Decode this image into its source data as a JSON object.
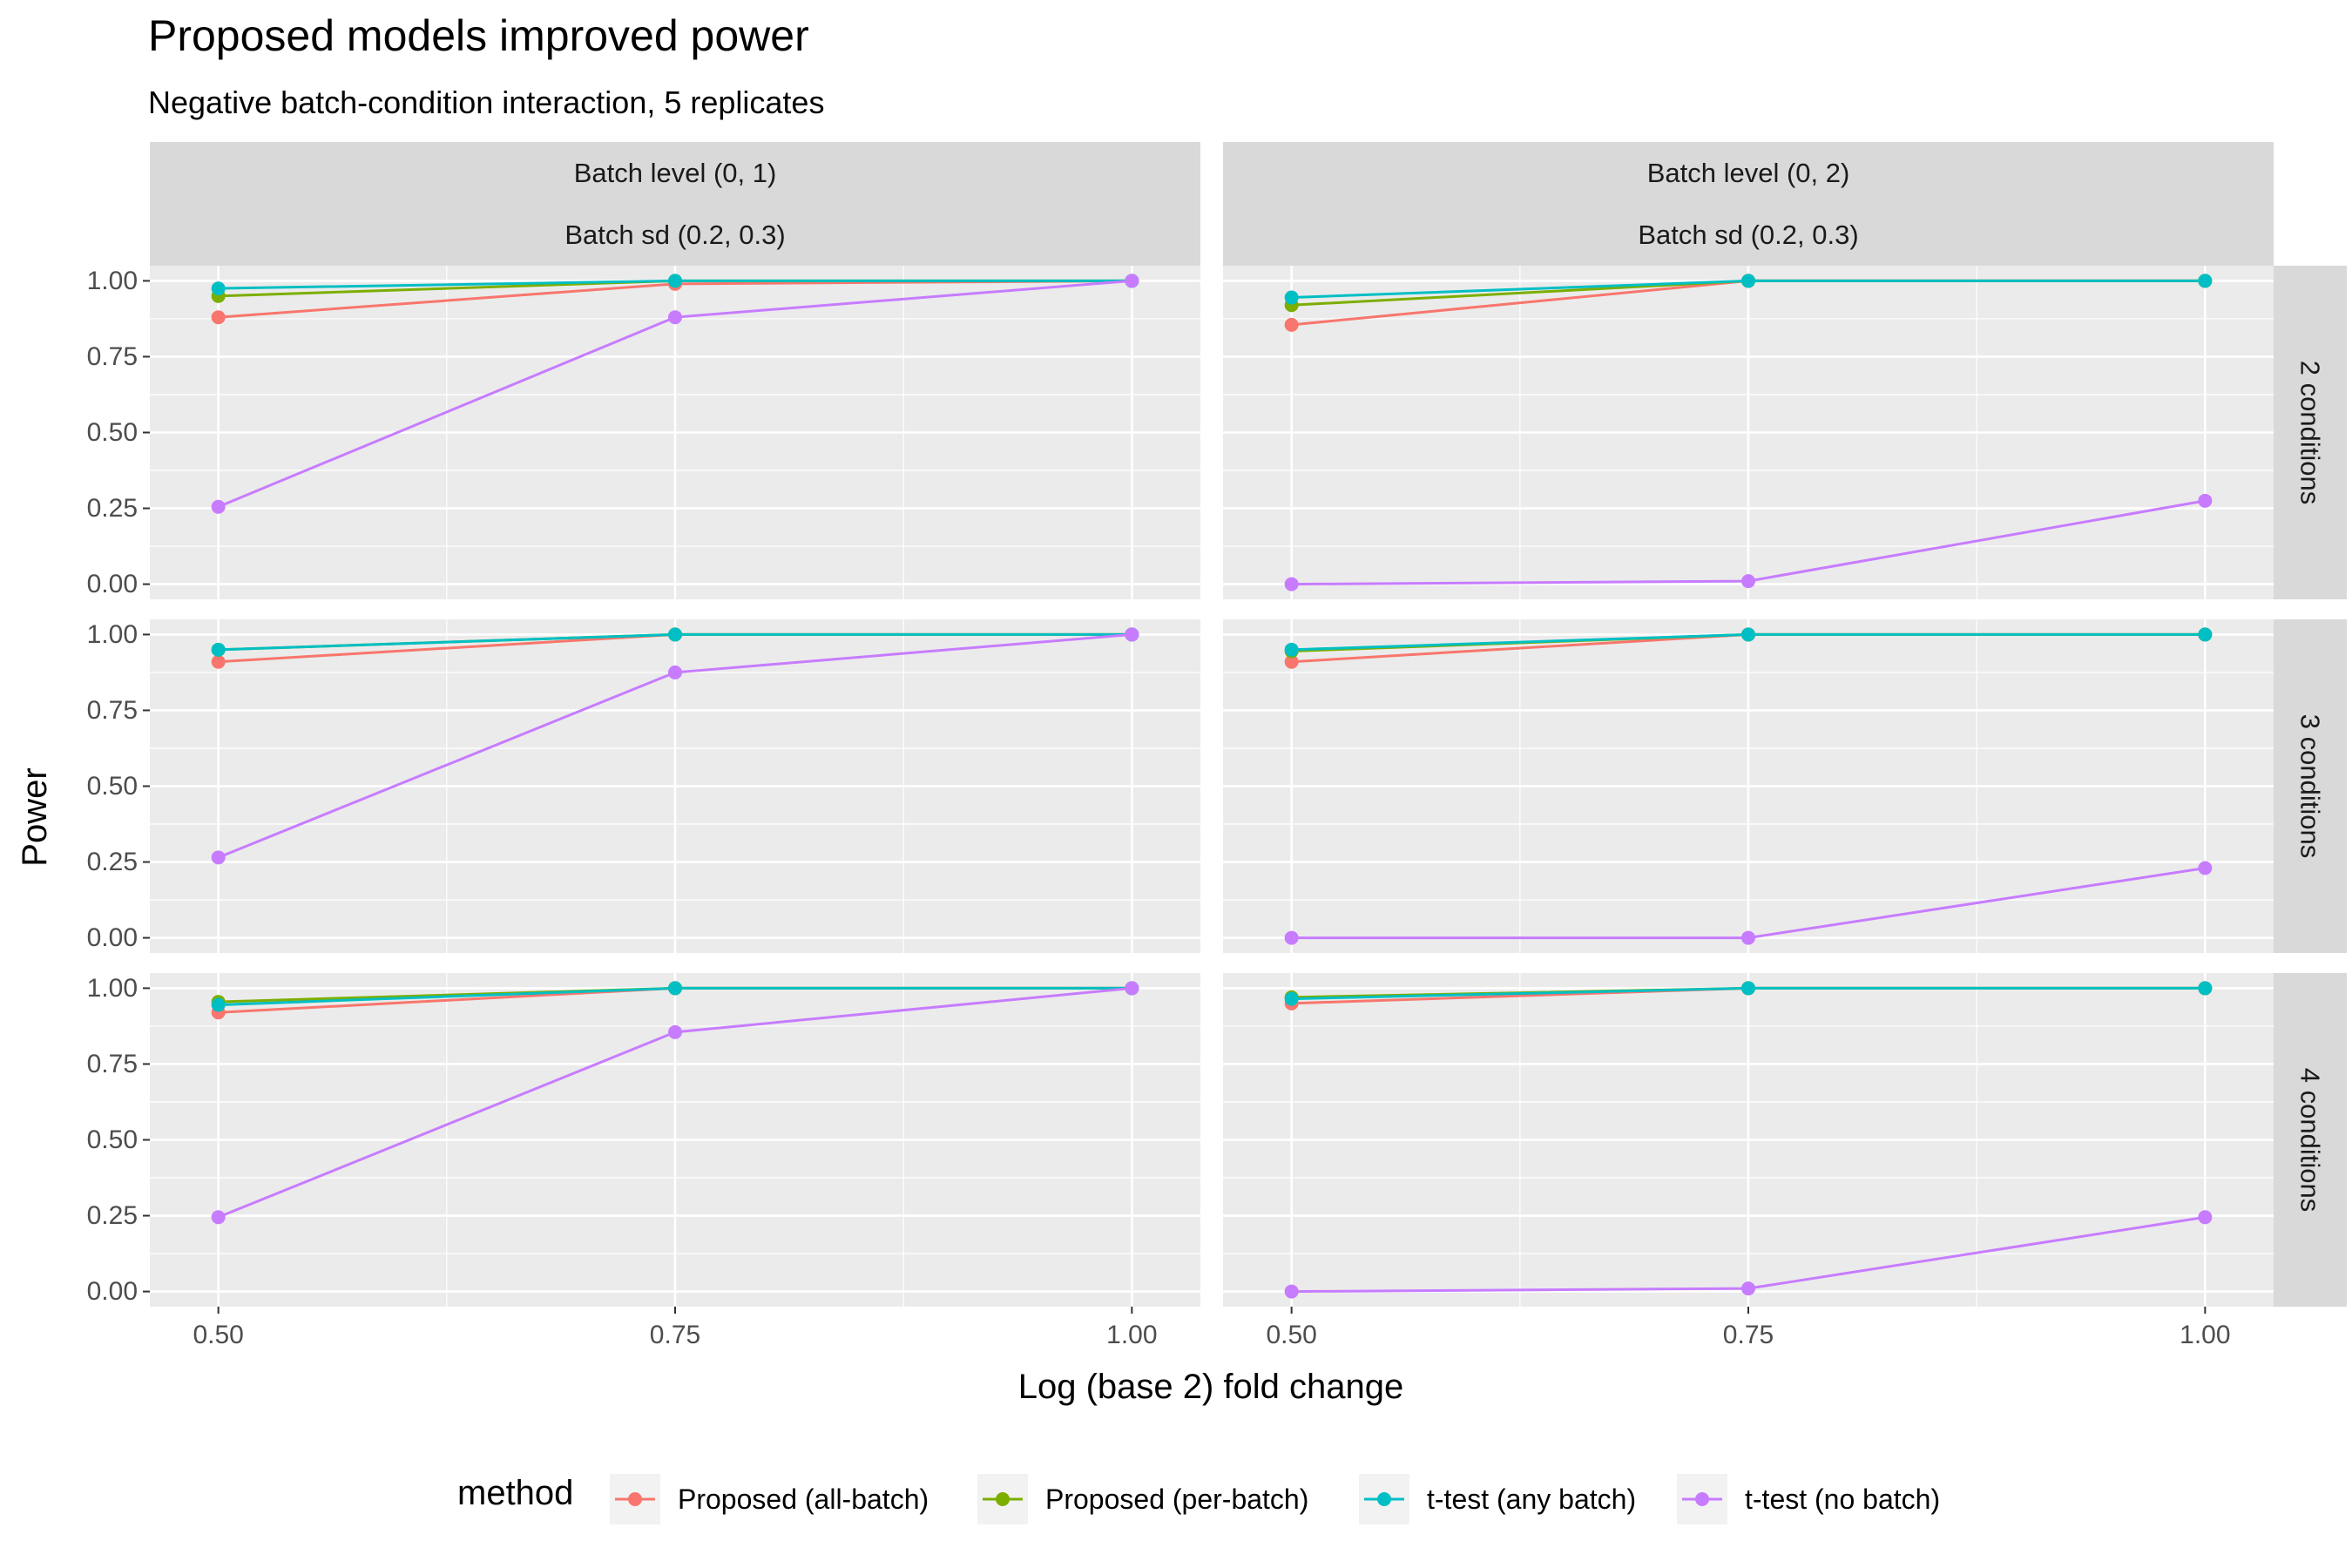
{
  "chart_data": {
    "type": "line",
    "title": "Proposed models improved power",
    "subtitle": "Negative batch-condition interaction, 5 replicates",
    "xlabel": "Log (base 2) fold change",
    "ylabel": "Power",
    "x_ticks": [
      "0.50",
      "0.75",
      "1.00"
    ],
    "x_tick_values": [
      0.5,
      0.75,
      1.0
    ],
    "y_ticks": [
      "0.00",
      "0.25",
      "0.50",
      "0.75",
      "1.00"
    ],
    "y_tick_values": [
      0,
      0.25,
      0.5,
      0.75,
      1.0
    ],
    "xlim": [
      0.4625,
      1.0375
    ],
    "ylim": [
      -0.05,
      1.05
    ],
    "grid": true,
    "legend": {
      "title": "method",
      "position": "bottom",
      "entries": [
        {
          "name": "Proposed (all-batch)",
          "color": "#F8766D"
        },
        {
          "name": "Proposed (per-batch)",
          "color": "#7CAE00"
        },
        {
          "name": "t-test (any batch)",
          "color": "#00BFC4"
        },
        {
          "name": "t-test (no batch)",
          "color": "#C77CFF"
        }
      ]
    },
    "columns": [
      {
        "strip_line1": "Batch level (0, 1)",
        "strip_line2": "Batch sd (0.2, 0.3)"
      },
      {
        "strip_line1": "Batch level (0, 2)",
        "strip_line2": "Batch sd (0.2, 0.3)"
      }
    ],
    "rows": [
      {
        "strip": "2 conditions"
      },
      {
        "strip": "3 conditions"
      },
      {
        "strip": "4 conditions"
      }
    ],
    "x": [
      0.5,
      0.75,
      1.0
    ],
    "panels": [
      {
        "row": 0,
        "col": 0,
        "series": [
          {
            "name": "Proposed (all-batch)",
            "values": [
              0.88,
              0.99,
              1.0
            ]
          },
          {
            "name": "Proposed (per-batch)",
            "values": [
              0.95,
              1.0,
              1.0
            ]
          },
          {
            "name": "t-test (any batch)",
            "values": [
              0.975,
              1.0,
              1.0
            ]
          },
          {
            "name": "t-test (no batch)",
            "values": [
              0.255,
              0.88,
              1.0
            ]
          }
        ]
      },
      {
        "row": 0,
        "col": 1,
        "series": [
          {
            "name": "Proposed (all-batch)",
            "values": [
              0.855,
              1.0,
              1.0
            ]
          },
          {
            "name": "Proposed (per-batch)",
            "values": [
              0.92,
              1.0,
              1.0
            ]
          },
          {
            "name": "t-test (any batch)",
            "values": [
              0.945,
              1.0,
              1.0
            ]
          },
          {
            "name": "t-test (no batch)",
            "values": [
              0.0,
              0.01,
              0.275
            ]
          }
        ]
      },
      {
        "row": 1,
        "col": 0,
        "series": [
          {
            "name": "Proposed (all-batch)",
            "values": [
              0.91,
              1.0,
              1.0
            ]
          },
          {
            "name": "Proposed (per-batch)",
            "values": [
              0.95,
              1.0,
              1.0
            ]
          },
          {
            "name": "t-test (any batch)",
            "values": [
              0.95,
              1.0,
              1.0
            ]
          },
          {
            "name": "t-test (no batch)",
            "values": [
              0.265,
              0.875,
              1.0
            ]
          }
        ]
      },
      {
        "row": 1,
        "col": 1,
        "series": [
          {
            "name": "Proposed (all-batch)",
            "values": [
              0.91,
              1.0,
              1.0
            ]
          },
          {
            "name": "Proposed (per-batch)",
            "values": [
              0.945,
              1.0,
              1.0
            ]
          },
          {
            "name": "t-test (any batch)",
            "values": [
              0.95,
              1.0,
              1.0
            ]
          },
          {
            "name": "t-test (no batch)",
            "values": [
              0.0,
              0.0,
              0.23
            ]
          }
        ]
      },
      {
        "row": 2,
        "col": 0,
        "series": [
          {
            "name": "Proposed (all-batch)",
            "values": [
              0.92,
              1.0,
              1.0
            ]
          },
          {
            "name": "Proposed (per-batch)",
            "values": [
              0.955,
              1.0,
              1.0
            ]
          },
          {
            "name": "t-test (any batch)",
            "values": [
              0.945,
              1.0,
              1.0
            ]
          },
          {
            "name": "t-test (no batch)",
            "values": [
              0.245,
              0.855,
              1.0
            ]
          }
        ]
      },
      {
        "row": 2,
        "col": 1,
        "series": [
          {
            "name": "Proposed (all-batch)",
            "values": [
              0.95,
              1.0,
              1.0
            ]
          },
          {
            "name": "Proposed (per-batch)",
            "values": [
              0.97,
              1.0,
              1.0
            ]
          },
          {
            "name": "t-test (any batch)",
            "values": [
              0.965,
              1.0,
              1.0
            ]
          },
          {
            "name": "t-test (no batch)",
            "values": [
              0.0,
              0.01,
              0.245
            ]
          }
        ]
      }
    ]
  }
}
